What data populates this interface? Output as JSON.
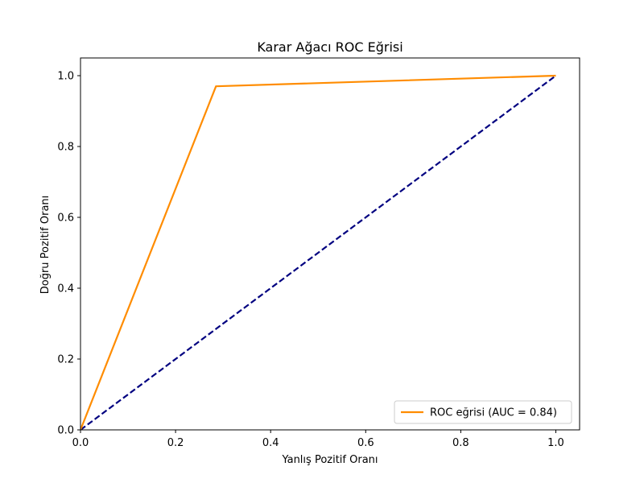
{
  "chart_data": {
    "type": "line",
    "title": "Karar Ağacı ROC Eğrisi",
    "xlabel": "Yanlış Pozitif Oranı",
    "ylabel": "Doğru Pozitif Oranı",
    "xlim": [
      0.0,
      1.05
    ],
    "ylim": [
      0.0,
      1.05
    ],
    "grid": false,
    "legend_position": "lower-right",
    "x_ticks": [
      {
        "value": 0.0,
        "label": "0.0"
      },
      {
        "value": 0.2,
        "label": "0.2"
      },
      {
        "value": 0.4,
        "label": "0.4"
      },
      {
        "value": 0.6,
        "label": "0.6"
      },
      {
        "value": 0.8,
        "label": "0.8"
      },
      {
        "value": 1.0,
        "label": "1.0"
      }
    ],
    "y_ticks": [
      {
        "value": 0.0,
        "label": "0.0"
      },
      {
        "value": 0.2,
        "label": "0.2"
      },
      {
        "value": 0.4,
        "label": "0.4"
      },
      {
        "value": 0.6,
        "label": "0.6"
      },
      {
        "value": 0.8,
        "label": "0.8"
      },
      {
        "value": 1.0,
        "label": "1.0"
      }
    ],
    "series": [
      {
        "name": "ROC eğrisi (AUC = 0.84)",
        "color": "#ff8c00",
        "style": "solid",
        "in_legend": true,
        "x": [
          0.0,
          0.285,
          1.0
        ],
        "y": [
          0.0,
          0.97,
          1.0
        ]
      },
      {
        "color": "#000080",
        "style": "dashed",
        "in_legend": false,
        "x": [
          0.0,
          1.0
        ],
        "y": [
          0.0,
          1.0
        ]
      }
    ]
  }
}
